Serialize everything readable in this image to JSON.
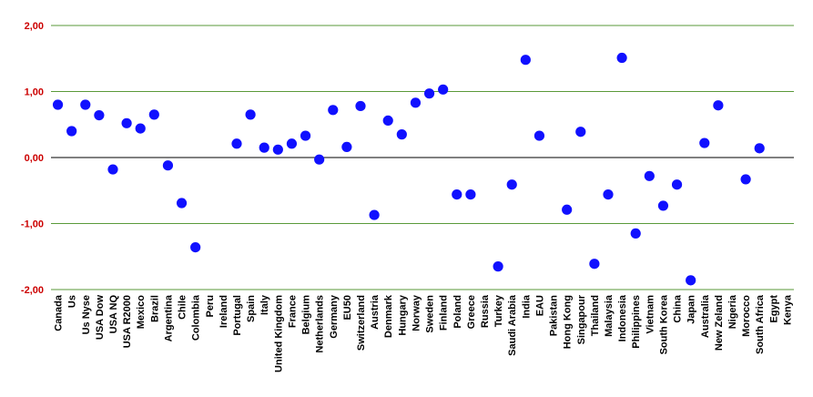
{
  "chart_data": {
    "type": "scatter",
    "title": "",
    "xlabel": "",
    "ylabel": "",
    "ylim": [
      -2.0,
      2.0
    ],
    "yticks": [
      -2.0,
      -1.0,
      0.0,
      1.0,
      2.0
    ],
    "ytick_labels": [
      "-2,00",
      "-1,00",
      "0,00",
      "1,00",
      "2,00"
    ],
    "grid": true,
    "colors": {
      "point": "#1010ff",
      "grid": "#5a9a3a",
      "zero_line": "#000000",
      "tick_label": "#cc0000"
    },
    "categories": [
      "Canada",
      "Us",
      "Us Nyse",
      "USA Dow",
      "USA NQ",
      "USA R2000",
      "Mexico",
      "Brazil",
      "Argentina",
      "Chile",
      "Colombia",
      "Peru",
      "Ireland",
      "Portugal",
      "Spain",
      "Italy",
      "United Kingdom",
      "France",
      "Belgium",
      "Netherlands",
      "Germany",
      "EU50",
      "Switzerland",
      "Austria",
      "Denmark",
      "Hungary",
      "Norway",
      "Sweden",
      "Finland",
      "Poland",
      "Greece",
      "Russia",
      "Turkey",
      "Saudi Arabia",
      "India",
      "EAU",
      "Pakistan",
      "Hong Kong",
      "Singapour",
      "Thailand",
      "Malaysia",
      "Indonesia",
      "Philippines",
      "Vietnam",
      "South Korea",
      "China",
      "Japan",
      "Australia",
      "New Zeland",
      "Nigeria",
      "Morocco",
      "South Africa",
      "Egypt",
      "Kenya"
    ],
    "values": [
      0.8,
      0.4,
      0.8,
      0.64,
      -0.18,
      0.52,
      0.44,
      0.65,
      -0.12,
      -0.69,
      -1.36,
      null,
      null,
      0.21,
      0.65,
      0.15,
      0.12,
      0.21,
      0.33,
      -0.03,
      0.72,
      0.16,
      0.78,
      -0.87,
      0.56,
      0.35,
      0.83,
      0.97,
      1.03,
      -0.56,
      -0.56,
      null,
      -1.65,
      -0.41,
      1.48,
      0.33,
      null,
      -0.79,
      0.39,
      -1.61,
      -0.56,
      1.51,
      -1.15,
      -0.28,
      -0.73,
      -0.41,
      -1.86,
      0.22,
      0.79,
      null,
      -0.33,
      0.14,
      null,
      null
    ]
  }
}
